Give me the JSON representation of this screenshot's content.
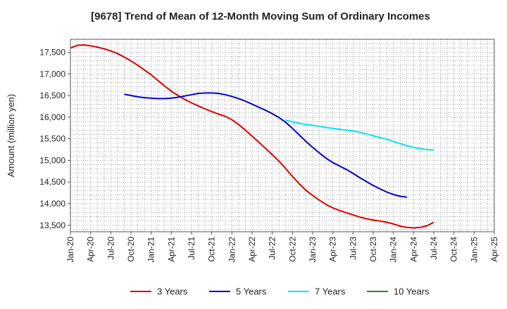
{
  "chart_data": {
    "type": "line",
    "title": "[9678]  Trend of Mean of 12-Month Moving Sum of Ordinary Incomes",
    "ylabel": "Amount (million yen)",
    "xlabel": "",
    "ylim": [
      13350,
      17800
    ],
    "yticks": [
      13500,
      14000,
      14500,
      15000,
      15500,
      16000,
      16500,
      17000,
      17500
    ],
    "ytick_labels": [
      "13,500",
      "14,000",
      "14,500",
      "15,000",
      "15,500",
      "16,000",
      "16,500",
      "17,000",
      "17,500"
    ],
    "xlim": [
      0,
      63
    ],
    "xticks": [
      0,
      3,
      6,
      9,
      12,
      15,
      18,
      21,
      24,
      27,
      30,
      33,
      36,
      39,
      42,
      45,
      48,
      51,
      54,
      57,
      60,
      63
    ],
    "xtick_labels": [
      "Jan-20",
      "Apr-20",
      "Jul-20",
      "Oct-20",
      "Jan-21",
      "Apr-21",
      "Jul-21",
      "Oct-21",
      "Jan-22",
      "Apr-22",
      "Jul-22",
      "Oct-22",
      "Jan-23",
      "Apr-23",
      "Jul-23",
      "Oct-23",
      "Jan-24",
      "Apr-24",
      "Jul-24",
      "Oct-24",
      "Jan-25",
      "Apr-25"
    ],
    "x_unit": "months since Jan-20",
    "grid": true,
    "legend_position": "bottom",
    "series": [
      {
        "name": "3 Years",
        "color": "#dd0000",
        "points": [
          [
            0,
            17600
          ],
          [
            1,
            17660
          ],
          [
            2,
            17670
          ],
          [
            3,
            17650
          ],
          [
            4,
            17620
          ],
          [
            5,
            17580
          ],
          [
            6,
            17530
          ],
          [
            7,
            17470
          ],
          [
            8,
            17390
          ],
          [
            9,
            17300
          ],
          [
            10,
            17200
          ],
          [
            11,
            17090
          ],
          [
            12,
            16980
          ],
          [
            13,
            16850
          ],
          [
            14,
            16720
          ],
          [
            15,
            16600
          ],
          [
            16,
            16500
          ],
          [
            17,
            16410
          ],
          [
            18,
            16330
          ],
          [
            19,
            16260
          ],
          [
            20,
            16190
          ],
          [
            21,
            16130
          ],
          [
            22,
            16070
          ],
          [
            23,
            16020
          ],
          [
            24,
            15940
          ],
          [
            25,
            15830
          ],
          [
            26,
            15700
          ],
          [
            27,
            15560
          ],
          [
            28,
            15420
          ],
          [
            29,
            15280
          ],
          [
            30,
            15130
          ],
          [
            31,
            14980
          ],
          [
            32,
            14810
          ],
          [
            33,
            14630
          ],
          [
            34,
            14460
          ],
          [
            35,
            14310
          ],
          [
            36,
            14190
          ],
          [
            37,
            14080
          ],
          [
            38,
            13980
          ],
          [
            39,
            13900
          ],
          [
            40,
            13840
          ],
          [
            41,
            13790
          ],
          [
            42,
            13740
          ],
          [
            43,
            13690
          ],
          [
            44,
            13650
          ],
          [
            45,
            13620
          ],
          [
            46,
            13600
          ],
          [
            47,
            13570
          ],
          [
            48,
            13530
          ],
          [
            49,
            13480
          ],
          [
            50,
            13450
          ],
          [
            51,
            13440
          ],
          [
            52,
            13450
          ],
          [
            53,
            13490
          ],
          [
            54,
            13570
          ]
        ]
      },
      {
        "name": "5 Years",
        "color": "#0000cc",
        "points": [
          [
            8,
            16530
          ],
          [
            9,
            16500
          ],
          [
            10,
            16470
          ],
          [
            11,
            16450
          ],
          [
            12,
            16440
          ],
          [
            13,
            16430
          ],
          [
            14,
            16430
          ],
          [
            15,
            16440
          ],
          [
            16,
            16460
          ],
          [
            17,
            16490
          ],
          [
            18,
            16520
          ],
          [
            19,
            16550
          ],
          [
            20,
            16560
          ],
          [
            21,
            16560
          ],
          [
            22,
            16550
          ],
          [
            23,
            16520
          ],
          [
            24,
            16480
          ],
          [
            25,
            16430
          ],
          [
            26,
            16370
          ],
          [
            27,
            16300
          ],
          [
            28,
            16230
          ],
          [
            29,
            16160
          ],
          [
            30,
            16080
          ],
          [
            31,
            15990
          ],
          [
            32,
            15880
          ],
          [
            33,
            15740
          ],
          [
            34,
            15590
          ],
          [
            35,
            15440
          ],
          [
            36,
            15300
          ],
          [
            37,
            15170
          ],
          [
            38,
            15050
          ],
          [
            39,
            14950
          ],
          [
            40,
            14870
          ],
          [
            41,
            14790
          ],
          [
            42,
            14700
          ],
          [
            43,
            14600
          ],
          [
            44,
            14510
          ],
          [
            45,
            14420
          ],
          [
            46,
            14340
          ],
          [
            47,
            14270
          ],
          [
            48,
            14210
          ],
          [
            49,
            14170
          ],
          [
            50,
            14150
          ]
        ]
      },
      {
        "name": "7 Years",
        "color": "#00e5ee",
        "points": [
          [
            32,
            15930
          ],
          [
            33,
            15890
          ],
          [
            34,
            15860
          ],
          [
            35,
            15830
          ],
          [
            36,
            15810
          ],
          [
            37,
            15790
          ],
          [
            38,
            15760
          ],
          [
            39,
            15740
          ],
          [
            40,
            15720
          ],
          [
            41,
            15700
          ],
          [
            42,
            15680
          ],
          [
            43,
            15650
          ],
          [
            44,
            15610
          ],
          [
            45,
            15570
          ],
          [
            46,
            15530
          ],
          [
            47,
            15490
          ],
          [
            48,
            15440
          ],
          [
            49,
            15390
          ],
          [
            50,
            15340
          ],
          [
            51,
            15300
          ],
          [
            52,
            15270
          ],
          [
            53,
            15250
          ],
          [
            54,
            15240
          ]
        ]
      },
      {
        "name": "10 Years",
        "color": "#228b22",
        "points": []
      }
    ]
  }
}
